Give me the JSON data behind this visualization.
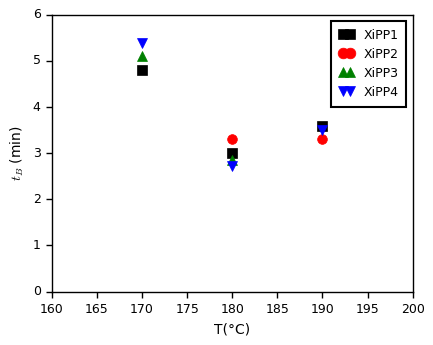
{
  "title": "",
  "xlabel": "T(°C)",
  "ylabel": "$t_{B}$ (min)",
  "xlim": [
    160,
    200
  ],
  "ylim": [
    0,
    6
  ],
  "xticks": [
    160,
    165,
    170,
    175,
    180,
    185,
    190,
    195,
    200
  ],
  "yticks": [
    0,
    1,
    2,
    3,
    4,
    5,
    6
  ],
  "series": [
    {
      "label": "XiPP1",
      "color": "black",
      "marker": "s",
      "x": [
        170,
        180,
        190
      ],
      "y": [
        4.8,
        3.0,
        3.6
      ]
    },
    {
      "label": "XiPP2",
      "color": "red",
      "marker": "o",
      "x": [
        180,
        190
      ],
      "y": [
        3.3,
        3.3
      ]
    },
    {
      "label": "XiPP3",
      "color": "green",
      "marker": "^",
      "x": [
        170,
        180
      ],
      "y": [
        5.1,
        2.85
      ]
    },
    {
      "label": "XiPP4",
      "color": "blue",
      "marker": "v",
      "x": [
        170,
        180,
        190
      ],
      "y": [
        5.38,
        2.72,
        3.5
      ]
    }
  ],
  "markersize": 7,
  "figsize": [
    4.33,
    3.45
  ],
  "dpi": 100,
  "legend_fontsize": 9,
  "axis_fontsize": 10,
  "tick_fontsize": 9
}
